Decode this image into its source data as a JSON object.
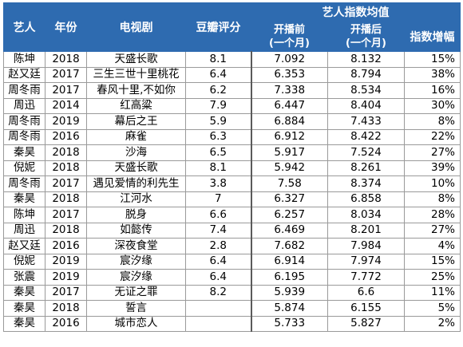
{
  "headers": {
    "artist": "艺人",
    "year": "年份",
    "drama": "电视剧",
    "douban": "豆瓣评分",
    "group": "艺人指数均值",
    "before_line1": "开播前",
    "before_line2": "(一个月)",
    "after_line1": "开播后",
    "after_line2": "(一个月)",
    "growth": "指数增幅"
  },
  "rows": [
    {
      "artist": "陈坤",
      "year": "2018",
      "drama": "天盛长歌",
      "score": "8.1",
      "before": "7.092",
      "after": "8.132",
      "growth": "15%"
    },
    {
      "artist": "赵又廷",
      "year": "2017",
      "drama": "三生三世十里桃花",
      "score": "6.4",
      "before": "6.353",
      "after": "8.794",
      "growth": "38%"
    },
    {
      "artist": "周冬雨",
      "year": "2017",
      "drama": "春风十里,不如你",
      "score": "6.2",
      "before": "7.338",
      "after": "8.534",
      "growth": "16%"
    },
    {
      "artist": "周迅",
      "year": "2014",
      "drama": "红高粱",
      "score": "7.9",
      "before": "6.447",
      "after": "8.404",
      "growth": "30%"
    },
    {
      "artist": "周冬雨",
      "year": "2019",
      "drama": "幕后之王",
      "score": "5.9",
      "before": "6.884",
      "after": "7.433",
      "growth": "8%"
    },
    {
      "artist": "周冬雨",
      "year": "2016",
      "drama": "麻雀",
      "score": "6.3",
      "before": "6.912",
      "after": "8.422",
      "growth": "22%"
    },
    {
      "artist": "秦昊",
      "year": "2018",
      "drama": "沙海",
      "score": "6.5",
      "before": "5.917",
      "after": "7.524",
      "growth": "27%"
    },
    {
      "artist": "倪妮",
      "year": "2018",
      "drama": "天盛长歌",
      "score": "8.1",
      "before": "5.942",
      "after": "8.261",
      "growth": "39%"
    },
    {
      "artist": "周冬雨",
      "year": "2017",
      "drama": "遇见爱情的利先生",
      "score": "3.8",
      "before": "7.58",
      "after": "8.374",
      "growth": "10%"
    },
    {
      "artist": "秦昊",
      "year": "2018",
      "drama": "江河水",
      "score": "7",
      "before": "6.327",
      "after": "6.858",
      "growth": "8%"
    },
    {
      "artist": "陈坤",
      "year": "2017",
      "drama": "脱身",
      "score": "6.6",
      "before": "6.257",
      "after": "8.034",
      "growth": "28%"
    },
    {
      "artist": "周迅",
      "year": "2018",
      "drama": "如懿传",
      "score": "7.4",
      "before": "6.469",
      "after": "8.201",
      "growth": "27%"
    },
    {
      "artist": "赵又廷",
      "year": "2016",
      "drama": "深夜食堂",
      "score": "2.8",
      "before": "7.682",
      "after": "7.984",
      "growth": "4%"
    },
    {
      "artist": "倪妮",
      "year": "2019",
      "drama": "宸汐缘",
      "score": "6.4",
      "before": "6.914",
      "after": "7.974",
      "growth": "15%"
    },
    {
      "artist": "张震",
      "year": "2019",
      "drama": "宸汐缘",
      "score": "6.4",
      "before": "6.195",
      "after": "7.772",
      "growth": "25%"
    },
    {
      "artist": "秦昊",
      "year": "2017",
      "drama": "无证之罪",
      "score": "8.2",
      "before": "5.939",
      "after": "6.6",
      "growth": "11%"
    },
    {
      "artist": "秦昊",
      "year": "2018",
      "drama": "誓言",
      "score": "",
      "before": "5.874",
      "after": "6.155",
      "growth": "5%"
    },
    {
      "artist": "秦昊",
      "year": "2016",
      "drama": "城市恋人",
      "score": "",
      "before": "5.733",
      "after": "5.827",
      "growth": "2%"
    }
  ],
  "colors": {
    "header_bg": "#2e6bb0",
    "header_text": "#ffffff",
    "grid": "#9a9a9a"
  }
}
